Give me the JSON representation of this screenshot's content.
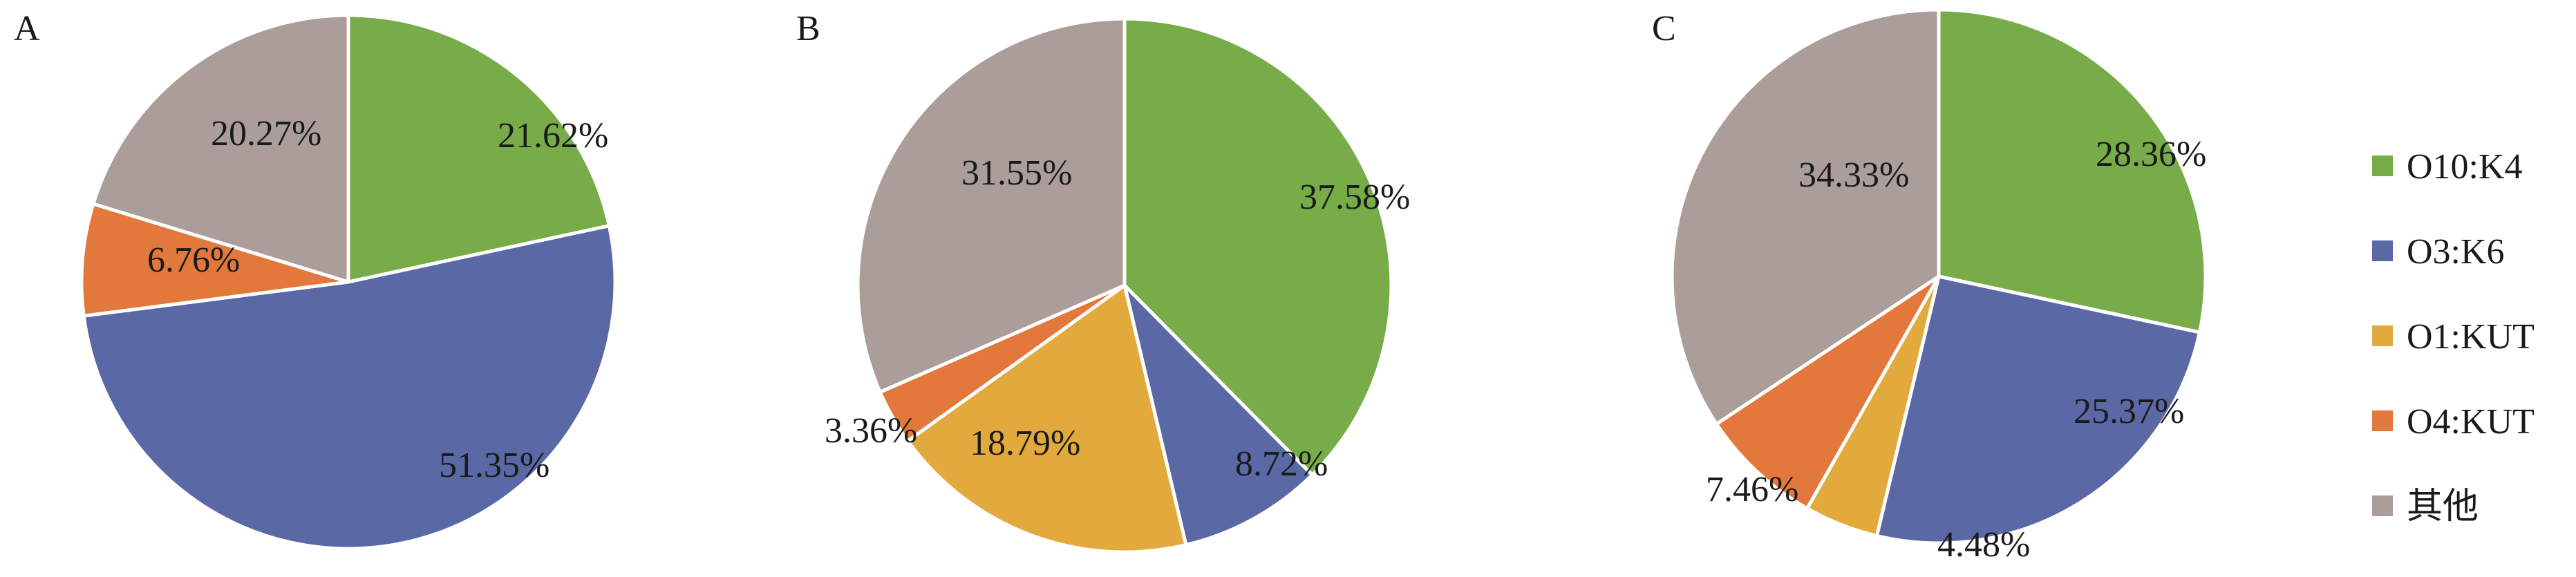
{
  "legend": [
    {
      "name": "O10:K4",
      "color": "#78AC48"
    },
    {
      "name": "O3:K6",
      "color": "#5B68A6"
    },
    {
      "name": "O1:KUT",
      "color": "#E2AA3C"
    },
    {
      "name": "O4:KUT",
      "color": "#E2783C"
    },
    {
      "name": "其他",
      "color": "#AB9E9A"
    }
  ],
  "chart_data": [
    {
      "type": "pie",
      "panel_label": "A",
      "slices": [
        {
          "category": "O10:K4",
          "value": 21.62,
          "label": "21.62%"
        },
        {
          "category": "O3:K6",
          "value": 51.35,
          "label": "51.35%"
        },
        {
          "category": "O4:KUT",
          "value": 6.76,
          "label": "6.76%"
        },
        {
          "category": "其他",
          "value": 20.27,
          "label": "20.27%"
        }
      ]
    },
    {
      "type": "pie",
      "panel_label": "B",
      "slices": [
        {
          "category": "O10:K4",
          "value": 37.58,
          "label": "37.58%"
        },
        {
          "category": "O3:K6",
          "value": 8.72,
          "label": "8.72%"
        },
        {
          "category": "O1:KUT",
          "value": 18.79,
          "label": "18.79%"
        },
        {
          "category": "O4:KUT",
          "value": 3.36,
          "label": "3.36%"
        },
        {
          "category": "其他",
          "value": 31.55,
          "label": "31.55%"
        }
      ]
    },
    {
      "type": "pie",
      "panel_label": "C",
      "slices": [
        {
          "category": "O10:K4",
          "value": 28.36,
          "label": "28.36%"
        },
        {
          "category": "O3:K6",
          "value": 25.37,
          "label": "25.37%"
        },
        {
          "category": "O1:KUT",
          "value": 4.48,
          "label": "4.48%"
        },
        {
          "category": "O4:KUT",
          "value": 7.46,
          "label": "7.46%"
        },
        {
          "category": "其他",
          "value": 34.33,
          "label": "34.33%"
        }
      ]
    }
  ]
}
